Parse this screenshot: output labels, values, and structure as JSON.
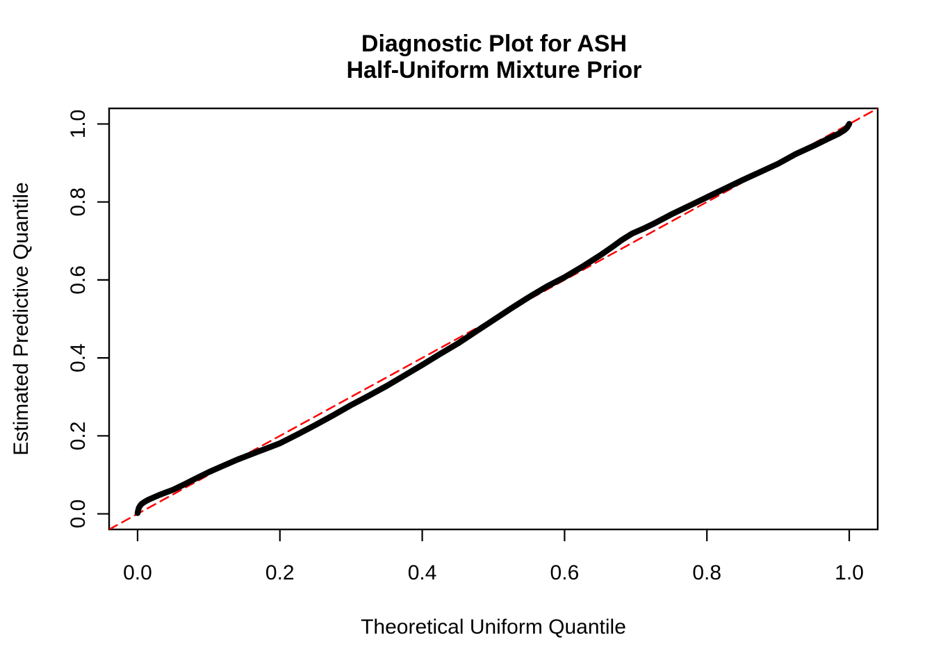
{
  "chart_data": {
    "type": "line",
    "title_line1": "Diagnostic Plot for ASH",
    "title_line2": "Half-Uniform Mixture Prior",
    "xlabel": "Theoretical Uniform Quantile",
    "ylabel": "Estimated Predictive Quantile",
    "xlim": [
      -0.04,
      1.04
    ],
    "ylim": [
      -0.04,
      1.04
    ],
    "grid": false,
    "legend": "none",
    "x_tick_values": [
      0.0,
      0.2,
      0.4,
      0.6,
      0.8,
      1.0
    ],
    "x_tick_labels": [
      "0.0",
      "0.2",
      "0.4",
      "0.6",
      "0.8",
      "1.0"
    ],
    "y_tick_values": [
      0.0,
      0.2,
      0.4,
      0.6,
      0.8,
      1.0
    ],
    "y_tick_labels": [
      "0.0",
      "0.2",
      "0.4",
      "0.6",
      "0.8",
      "1.0"
    ],
    "colors": {
      "curve": "#000000",
      "reference_line": "#FF0000",
      "frame": "#000000"
    },
    "series": [
      {
        "name": "estimated-vs-theoretical-quantiles",
        "color": "#000000",
        "style": "solid",
        "width": 8.5,
        "points": [
          [
            0.0,
            0.002
          ],
          [
            0.001,
            0.01
          ],
          [
            0.002,
            0.016
          ],
          [
            0.004,
            0.022
          ],
          [
            0.006,
            0.026
          ],
          [
            0.01,
            0.031
          ],
          [
            0.015,
            0.036
          ],
          [
            0.02,
            0.04
          ],
          [
            0.03,
            0.048
          ],
          [
            0.04,
            0.055
          ],
          [
            0.05,
            0.062
          ],
          [
            0.065,
            0.075
          ],
          [
            0.08,
            0.089
          ],
          [
            0.1,
            0.107
          ],
          [
            0.12,
            0.123
          ],
          [
            0.14,
            0.139
          ],
          [
            0.16,
            0.153
          ],
          [
            0.18,
            0.167
          ],
          [
            0.2,
            0.181
          ],
          [
            0.225,
            0.204
          ],
          [
            0.25,
            0.228
          ],
          [
            0.275,
            0.253
          ],
          [
            0.3,
            0.279
          ],
          [
            0.325,
            0.303
          ],
          [
            0.35,
            0.328
          ],
          [
            0.375,
            0.355
          ],
          [
            0.4,
            0.382
          ],
          [
            0.425,
            0.41
          ],
          [
            0.45,
            0.437
          ],
          [
            0.475,
            0.467
          ],
          [
            0.5,
            0.497
          ],
          [
            0.525,
            0.527
          ],
          [
            0.55,
            0.556
          ],
          [
            0.575,
            0.583
          ],
          [
            0.6,
            0.607
          ],
          [
            0.625,
            0.634
          ],
          [
            0.65,
            0.663
          ],
          [
            0.665,
            0.682
          ],
          [
            0.68,
            0.702
          ],
          [
            0.695,
            0.719
          ],
          [
            0.71,
            0.731
          ],
          [
            0.725,
            0.744
          ],
          [
            0.75,
            0.768
          ],
          [
            0.775,
            0.79
          ],
          [
            0.8,
            0.812
          ],
          [
            0.825,
            0.834
          ],
          [
            0.85,
            0.856
          ],
          [
            0.875,
            0.877
          ],
          [
            0.9,
            0.898
          ],
          [
            0.925,
            0.923
          ],
          [
            0.95,
            0.944
          ],
          [
            0.97,
            0.962
          ],
          [
            0.985,
            0.975
          ],
          [
            0.993,
            0.984
          ],
          [
            0.997,
            0.991
          ],
          [
            1.0,
            1.0
          ]
        ]
      },
      {
        "name": "reference-line-y-equals-x",
        "color": "#FF0000",
        "style": "dashed",
        "width": 2.5,
        "points": [
          [
            -0.04,
            -0.04
          ],
          [
            1.04,
            1.04
          ]
        ]
      }
    ]
  }
}
